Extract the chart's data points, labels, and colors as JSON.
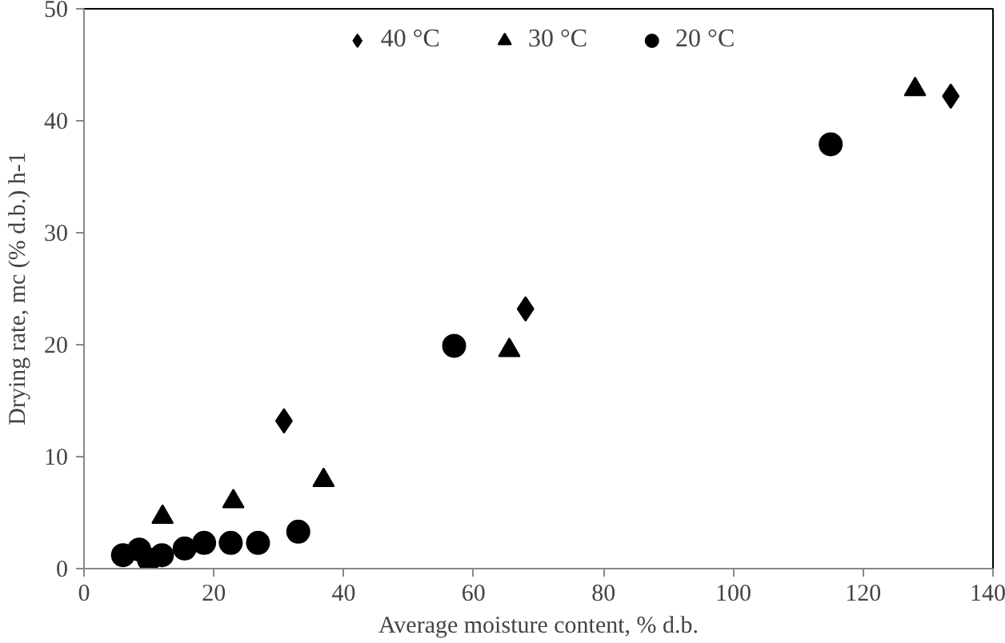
{
  "chart_data": {
    "type": "scatter",
    "xlabel": "Average moisture content, % d.b.",
    "ylabel": "Drying rate, mc (% d.b.) h-1",
    "xlim": [
      0,
      140
    ],
    "xticks": [
      0,
      20,
      40,
      60,
      80,
      100,
      120,
      140
    ],
    "ylim": [
      0,
      50
    ],
    "yticks": [
      0,
      10,
      20,
      30,
      40,
      50
    ],
    "grid": false,
    "legend": "top",
    "series": [
      {
        "name": "40 °C",
        "color": "#000000",
        "marker": "diamond",
        "x": [
          133.5,
          68,
          30.8
        ],
        "values": [
          42.2,
          23.2,
          13.2
        ]
      },
      {
        "name": "30 °C",
        "color": "#000000",
        "marker": "triangle",
        "x": [
          128,
          65.5,
          36.9,
          23,
          12.1
        ],
        "values": [
          42.8,
          19.5,
          7.9,
          6,
          4.6
        ]
      },
      {
        "name": "20 °C",
        "color": "#000000",
        "marker": "circle",
        "x": [
          115,
          57,
          33,
          26.8,
          22.6,
          18.5,
          15.5,
          12,
          10,
          8.5,
          6
        ],
        "values": [
          37.9,
          19.9,
          3.3,
          2.3,
          2.3,
          2.3,
          1.8,
          1.2,
          0.8,
          1.7,
          1.2
        ]
      }
    ]
  }
}
